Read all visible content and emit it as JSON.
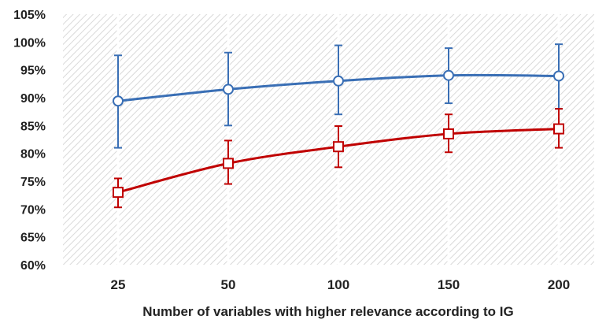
{
  "chart_data": {
    "type": "line",
    "title": "",
    "xlabel": "Number of variables with higher relevance according to IG",
    "ylabel": "",
    "categories": [
      "25",
      "50",
      "100",
      "150",
      "200"
    ],
    "y_ticks": [
      "60%",
      "65%",
      "70%",
      "75%",
      "80%",
      "85%",
      "90%",
      "95%",
      "100%",
      "105%"
    ],
    "ylim": [
      60,
      105
    ],
    "grid": "hatched background",
    "legend": "none",
    "series": [
      {
        "color": "#3a6fb5",
        "marker": "circle",
        "values": [
          89.4,
          91.5,
          93.0,
          94.0,
          93.9
        ],
        "err_low": [
          81.0,
          85.0,
          87.0,
          89.0,
          88.0
        ],
        "err_high": [
          97.6,
          98.1,
          99.4,
          98.9,
          99.6
        ]
      },
      {
        "color": "#c00000",
        "marker": "square",
        "values": [
          73.0,
          78.2,
          81.2,
          83.5,
          84.4
        ],
        "err_low": [
          70.3,
          74.5,
          77.5,
          80.2,
          81.0
        ],
        "err_high": [
          75.5,
          82.3,
          84.9,
          87.0,
          88.0
        ]
      }
    ]
  }
}
